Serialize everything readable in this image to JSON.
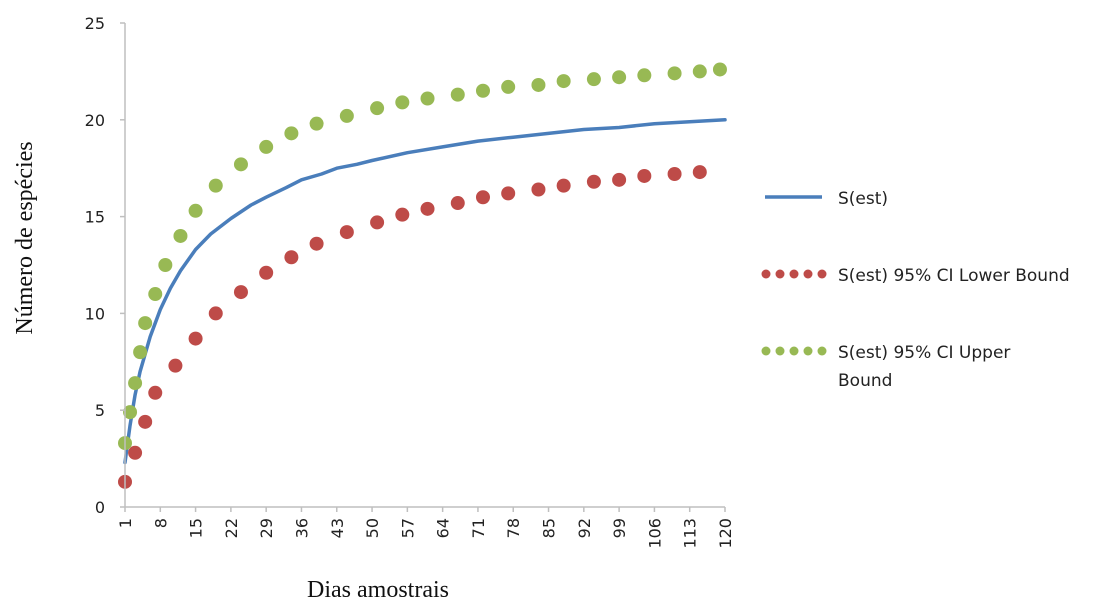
{
  "chart_data": {
    "type": "line",
    "xlabel": "Dias amostrais",
    "ylabel": "Número de espécies",
    "ylim": [
      0,
      25
    ],
    "y_ticks": [
      "0",
      "5",
      "10",
      "15",
      "20",
      "25"
    ],
    "x_ticks": [
      "1",
      "8",
      "15",
      "22",
      "29",
      "36",
      "43",
      "50",
      "57",
      "64",
      "71",
      "78",
      "85",
      "92",
      "99",
      "106",
      "113",
      "120"
    ],
    "xlim": [
      1,
      120
    ],
    "legend_position": "right",
    "grid": false,
    "series": [
      {
        "name": "S(est)",
        "style": "line",
        "color": "#4a7ebb",
        "x": [
          1,
          2,
          3,
          4,
          6,
          8,
          10,
          12,
          15,
          18,
          22,
          26,
          29,
          33,
          36,
          40,
          43,
          47,
          50,
          57,
          64,
          71,
          78,
          85,
          92,
          99,
          106,
          113,
          120
        ],
        "values": [
          2.3,
          4.2,
          5.8,
          7.0,
          8.8,
          10.2,
          11.3,
          12.2,
          13.3,
          14.1,
          14.9,
          15.6,
          16.0,
          16.5,
          16.9,
          17.2,
          17.5,
          17.7,
          17.9,
          18.3,
          18.6,
          18.9,
          19.1,
          19.3,
          19.5,
          19.6,
          19.8,
          19.9,
          20.0
        ]
      },
      {
        "name": "S(est) 95% CI Lower Bound",
        "style": "dots",
        "color": "#be4b48",
        "x": [
          1,
          3,
          5,
          7,
          11,
          15,
          19,
          24,
          29,
          34,
          39,
          45,
          51,
          56,
          61,
          67,
          72,
          77,
          83,
          88,
          94,
          99,
          104,
          110,
          115
        ],
        "values": [
          1.3,
          2.8,
          4.4,
          5.9,
          7.3,
          8.7,
          10.0,
          11.1,
          12.1,
          12.9,
          13.6,
          14.2,
          14.7,
          15.1,
          15.4,
          15.7,
          16.0,
          16.2,
          16.4,
          16.6,
          16.8,
          16.9,
          17.1,
          17.2,
          17.3
        ]
      },
      {
        "name": "S(est) 95% CI Upper Bound",
        "style": "dots",
        "color": "#98b954",
        "x": [
          1,
          2,
          3,
          4,
          5,
          7,
          9,
          12,
          15,
          19,
          24,
          29,
          34,
          39,
          45,
          51,
          56,
          61,
          67,
          72,
          77,
          83,
          88,
          94,
          99,
          104,
          110,
          115,
          119
        ],
        "values": [
          3.3,
          4.9,
          6.4,
          8.0,
          9.5,
          11.0,
          12.5,
          14.0,
          15.3,
          16.6,
          17.7,
          18.6,
          19.3,
          19.8,
          20.2,
          20.6,
          20.9,
          21.1,
          21.3,
          21.5,
          21.7,
          21.8,
          22.0,
          22.1,
          22.2,
          22.3,
          22.4,
          22.5,
          22.6
        ]
      }
    ]
  }
}
